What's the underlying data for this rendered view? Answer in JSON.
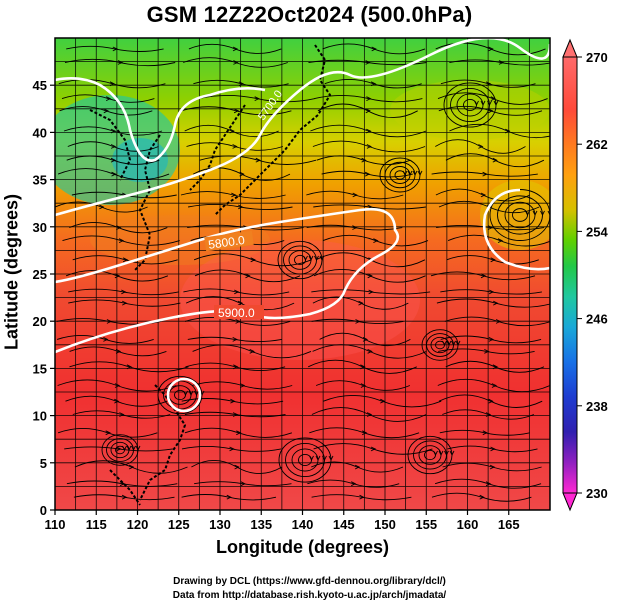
{
  "title": "GSM 12Z22Oct2024 (500.0hPa)",
  "x_axis": {
    "label": "Longitude (degrees)",
    "ticks": [
      "110",
      "115",
      "120",
      "125",
      "130",
      "135",
      "140",
      "145",
      "150",
      "155",
      "160",
      "165"
    ]
  },
  "y_axis": {
    "label": "Latitude  (degrees)",
    "ticks": [
      "0",
      "5",
      "10",
      "15",
      "20",
      "25",
      "30",
      "35",
      "40",
      "45"
    ]
  },
  "colorbar": {
    "ticks": [
      "270",
      "262",
      "254",
      "246",
      "238",
      "230"
    ],
    "stops": [
      "#ff6a6a",
      "#ff3b3b",
      "#ff6a20",
      "#ff9a10",
      "#e6b800",
      "#9ad200",
      "#2ecc20",
      "#20c878",
      "#19b6c8",
      "#1890e6",
      "#1e5adc",
      "#2020b4",
      "#6a20b4",
      "#c81ec8",
      "#ff28d2"
    ]
  },
  "contours": [
    {
      "label": "5900.0"
    },
    {
      "label": "5800.0"
    },
    {
      "label": "5700.0"
    }
  ],
  "credits": [
    "Drawing by DCL (https://www.gfd-dennou.org/library/dcl/)",
    "Data from http://database.rish.kyoto-u.ac.jp/arch/jmadata/"
  ]
}
